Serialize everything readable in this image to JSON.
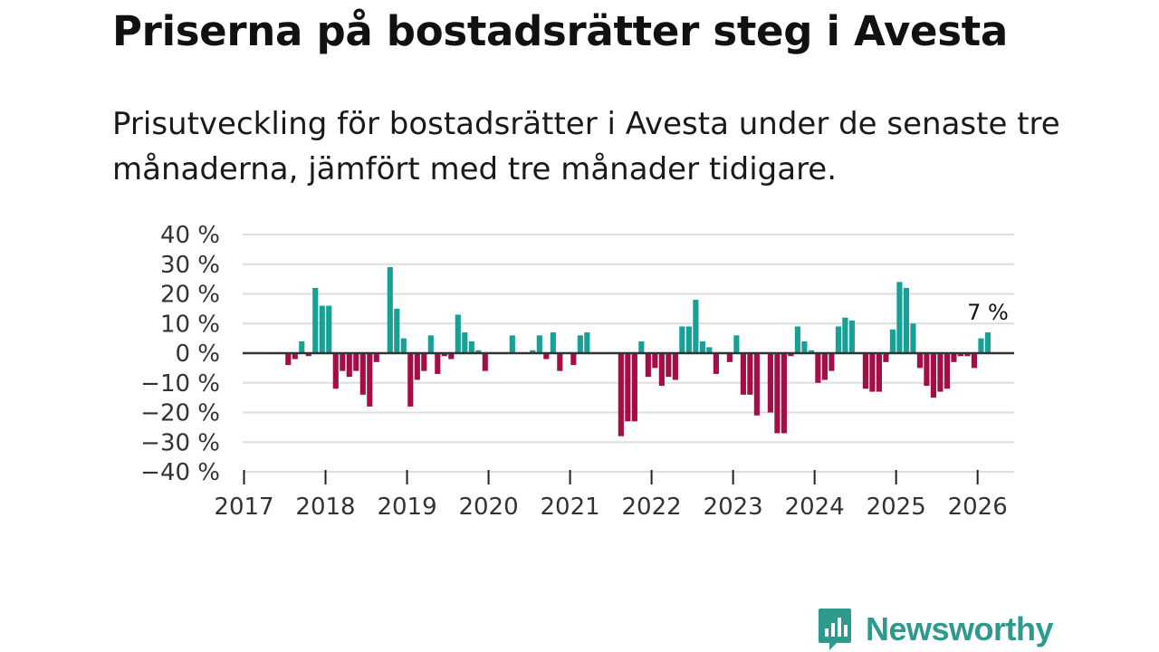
{
  "header": {
    "title": "Priserna på bostadsrätter steg i Avesta",
    "subtitle": "Prisutveckling för bostadsrätter i Avesta under de senaste tre månaderna, jämfört med tre månader tidigare."
  },
  "brand": {
    "name": "Newsworthy",
    "color": "#2e9a8e"
  },
  "colors": {
    "positive": "#16a096",
    "negative": "#a50d47",
    "grid": "#dddddd",
    "zero_line": "#333333"
  },
  "chart_data": {
    "type": "bar",
    "title": "",
    "xlabel": "",
    "ylabel": "",
    "ylim": [
      -40,
      40
    ],
    "y_ticks": [
      40,
      30,
      20,
      10,
      0,
      -10,
      -20,
      -30,
      -40
    ],
    "y_tick_labels": [
      "40 %",
      "30 %",
      "20 %",
      "10 %",
      "0 %",
      "−10 %",
      "−20 %",
      "−30 %",
      "−40 %"
    ],
    "x_tick_labels": [
      "2017",
      "2018",
      "2019",
      "2020",
      "2021",
      "2022",
      "2023",
      "2024",
      "2025",
      "2026"
    ],
    "start": "2017-01",
    "end_label": "7 %",
    "series": [
      {
        "name": "Prisutveckling",
        "values": [
          null,
          null,
          null,
          null,
          null,
          null,
          -4,
          -2,
          4,
          -1,
          22,
          16,
          16,
          -12,
          -6,
          -8,
          -6,
          -14,
          -18,
          -3,
          null,
          29,
          15,
          5,
          -18,
          -9,
          -6,
          6,
          -7,
          -1,
          -2,
          13,
          7,
          4,
          1,
          -6,
          null,
          null,
          null,
          6,
          null,
          null,
          1,
          6,
          -2,
          7,
          -6,
          null,
          -4,
          6,
          7,
          null,
          null,
          null,
          null,
          -28,
          -23,
          -23,
          4,
          -8,
          -5,
          -11,
          -8,
          -9,
          9,
          9,
          18,
          4,
          2,
          -7,
          null,
          -3,
          6,
          -14,
          -14,
          -21,
          null,
          -20,
          -27,
          -27,
          -1,
          9,
          4,
          1,
          -10,
          -9,
          -6,
          9,
          12,
          11,
          null,
          -12,
          -13,
          -13,
          -3,
          8,
          24,
          22,
          10,
          -5,
          -11,
          -15,
          -13,
          -12,
          -3,
          -1,
          -1,
          -5,
          5,
          7
        ]
      }
    ]
  }
}
